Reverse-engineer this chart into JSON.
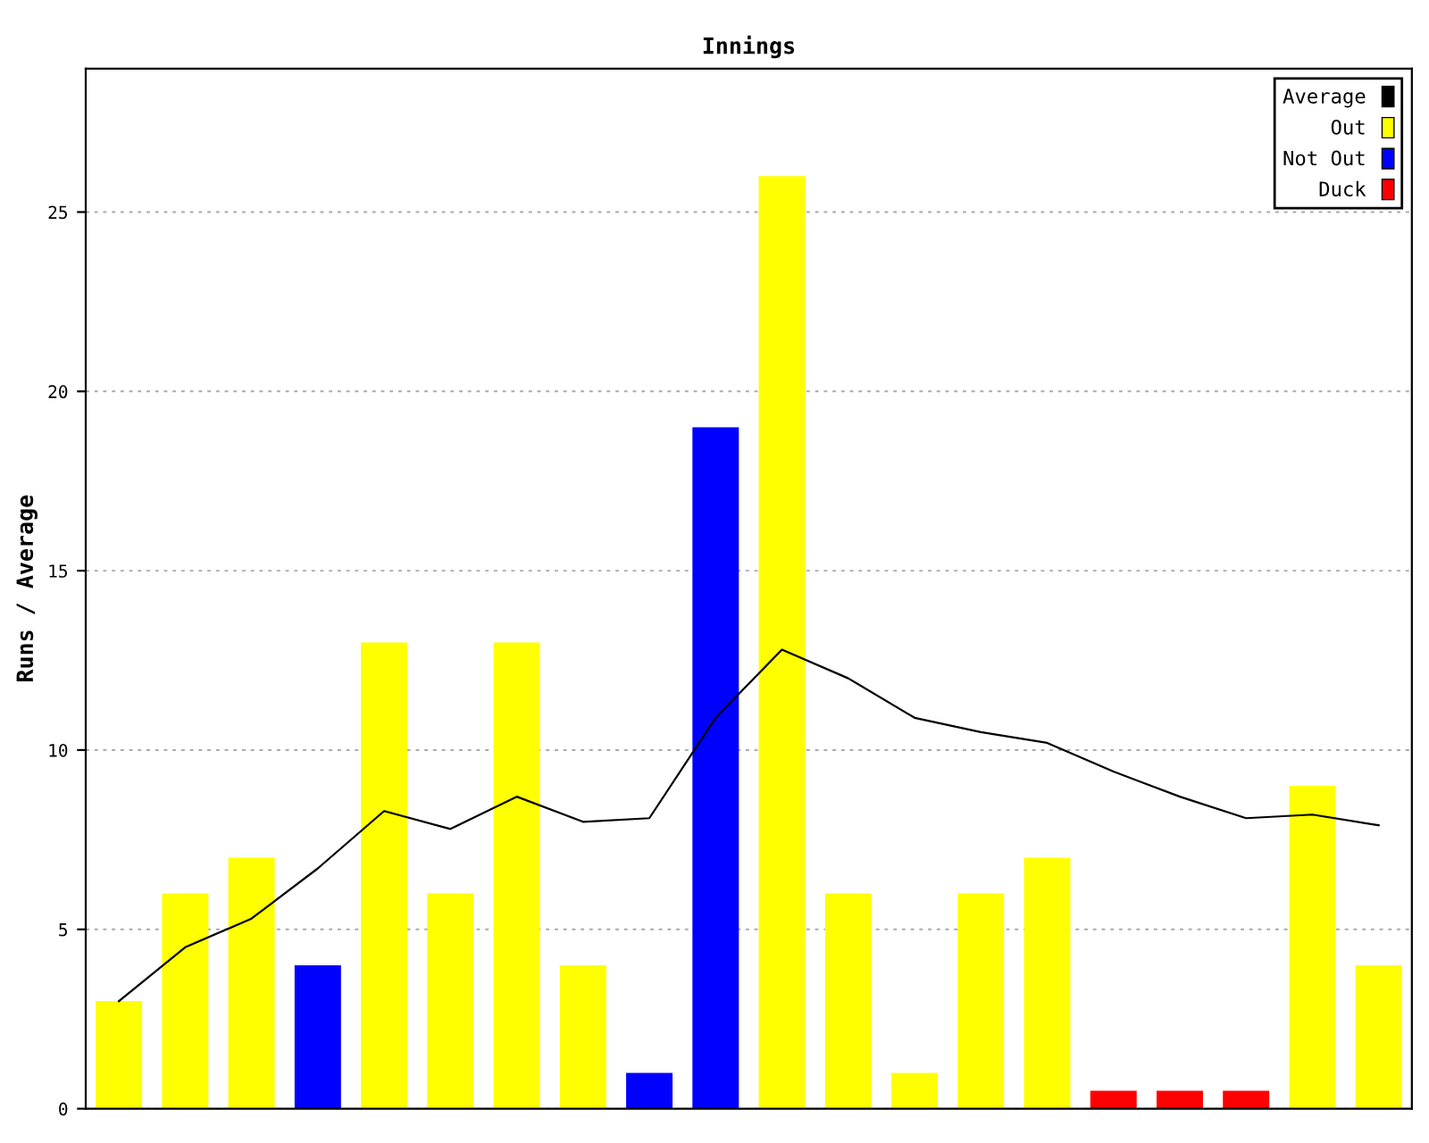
{
  "chart_data": {
    "type": "bar",
    "title": "Innings",
    "ylabel": "Runs / Average",
    "categories": [
      null,
      null,
      null,
      null,
      null,
      null,
      null,
      null,
      null,
      null,
      null,
      null,
      null,
      null,
      null,
      null,
      null,
      null,
      null,
      null
    ],
    "series": [
      {
        "name": "Average",
        "type": "line",
        "color": "#000000",
        "values": [
          3,
          4.5,
          5.3,
          6.7,
          8.3,
          7.8,
          8.7,
          8,
          8.1,
          10.9,
          12.8,
          12,
          10.9,
          10.5,
          10.2,
          9.4,
          8.7,
          8.1,
          8.2,
          7.9
        ]
      },
      {
        "name": "Out",
        "color": "#ffff00",
        "values": [
          3,
          6,
          7,
          null,
          13,
          6,
          13,
          4,
          null,
          null,
          26,
          6,
          1,
          6,
          7,
          null,
          null,
          null,
          9,
          4
        ]
      },
      {
        "name": "Not Out",
        "color": "#0000ff",
        "values": [
          null,
          null,
          null,
          4,
          null,
          null,
          null,
          null,
          1,
          19,
          null,
          null,
          null,
          null,
          null,
          null,
          null,
          null,
          null,
          null
        ]
      },
      {
        "name": "Duck",
        "color": "#ff0000",
        "values": [
          null,
          null,
          null,
          null,
          null,
          null,
          null,
          null,
          null,
          null,
          null,
          null,
          null,
          null,
          null,
          0.5,
          0.5,
          0.5,
          null,
          null
        ]
      }
    ],
    "ylim": [
      0,
      29
    ],
    "yticks": [
      0,
      5,
      10,
      15,
      20,
      25
    ],
    "grid": "y",
    "legend": "top right",
    "marker": "none",
    "line_style": "solid"
  }
}
